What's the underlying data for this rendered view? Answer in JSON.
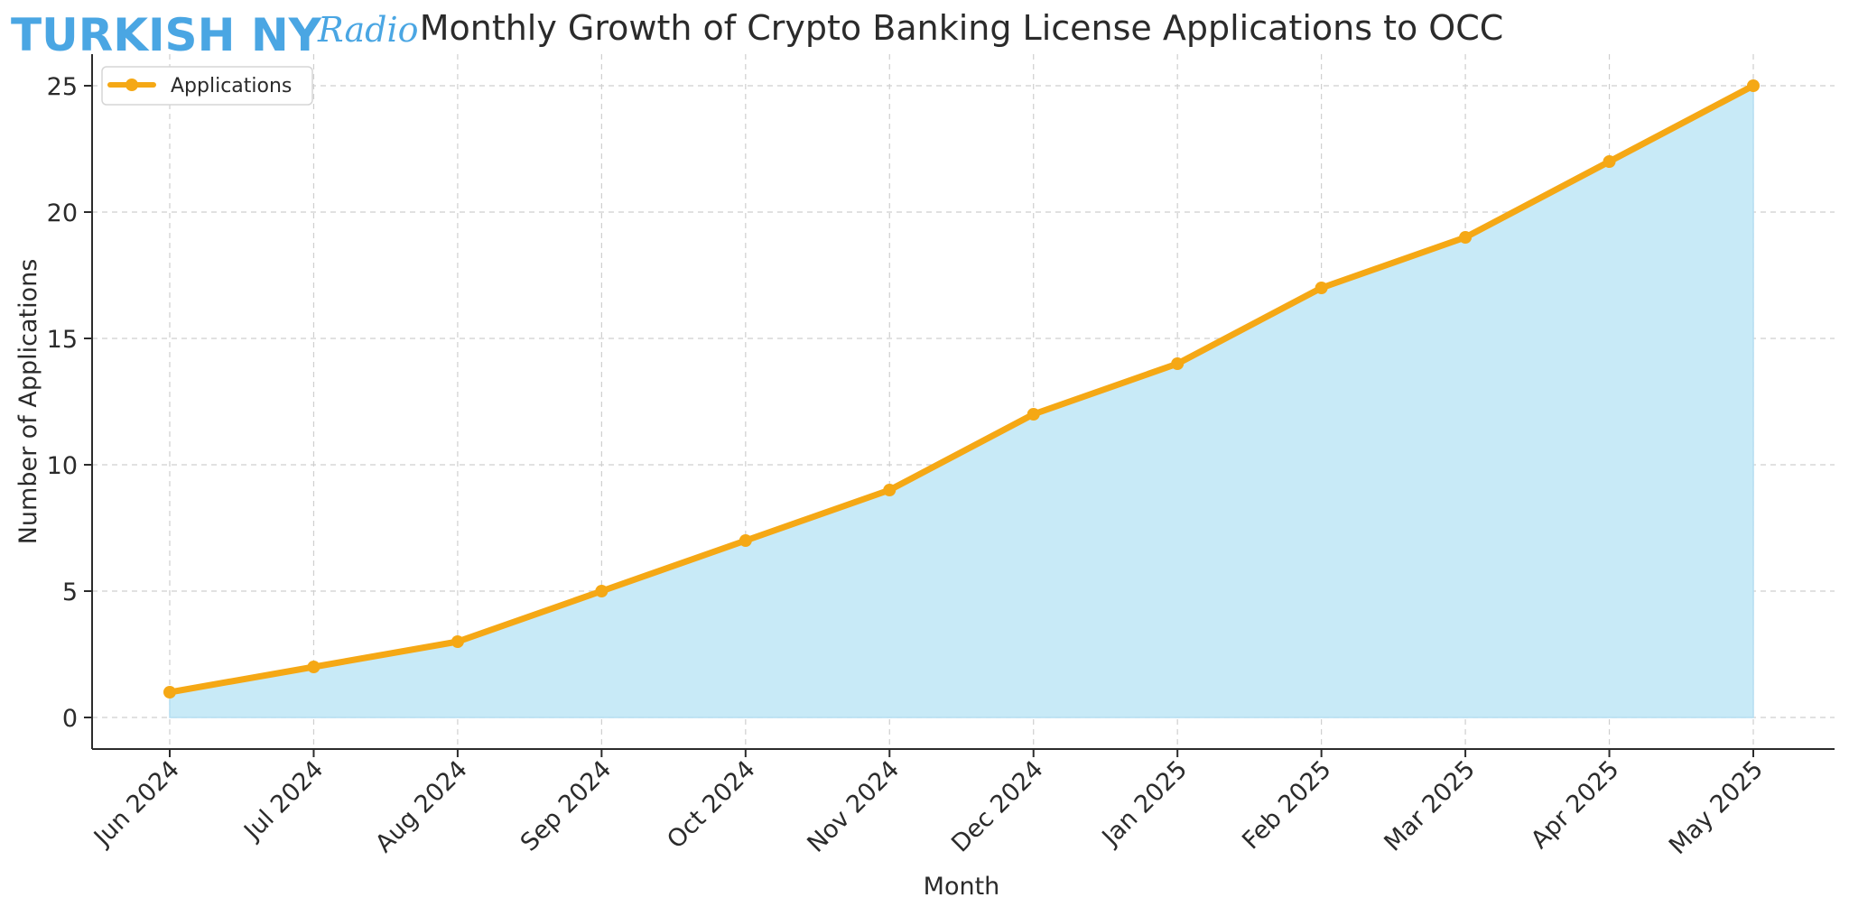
{
  "logo": {
    "main": "TURKISH NY",
    "script": "Radio",
    "color": "#4aa6e3"
  },
  "chart_data": {
    "type": "area",
    "title": "Monthly Growth of Crypto Banking License Applications to OCC",
    "xlabel": "Month",
    "ylabel": "Number of Applications",
    "categories": [
      "Jun 2024",
      "Jul 2024",
      "Aug 2024",
      "Sep 2024",
      "Oct 2024",
      "Nov 2024",
      "Dec 2024",
      "Jan 2025",
      "Feb 2025",
      "Mar 2025",
      "Apr 2025",
      "May 2025"
    ],
    "series": [
      {
        "name": "Applications",
        "values": [
          1,
          2,
          3,
          5,
          7,
          9,
          12,
          14,
          17,
          19,
          22,
          25
        ],
        "line_color": "#f5a815",
        "fill_color": "#c8eaf7"
      }
    ],
    "ylim": [
      -1.25,
      26.25
    ],
    "yticks": [
      0,
      5,
      10,
      15,
      20,
      25
    ],
    "grid": true,
    "legend_position": "top-left",
    "x_tick_rotation": 45
  }
}
